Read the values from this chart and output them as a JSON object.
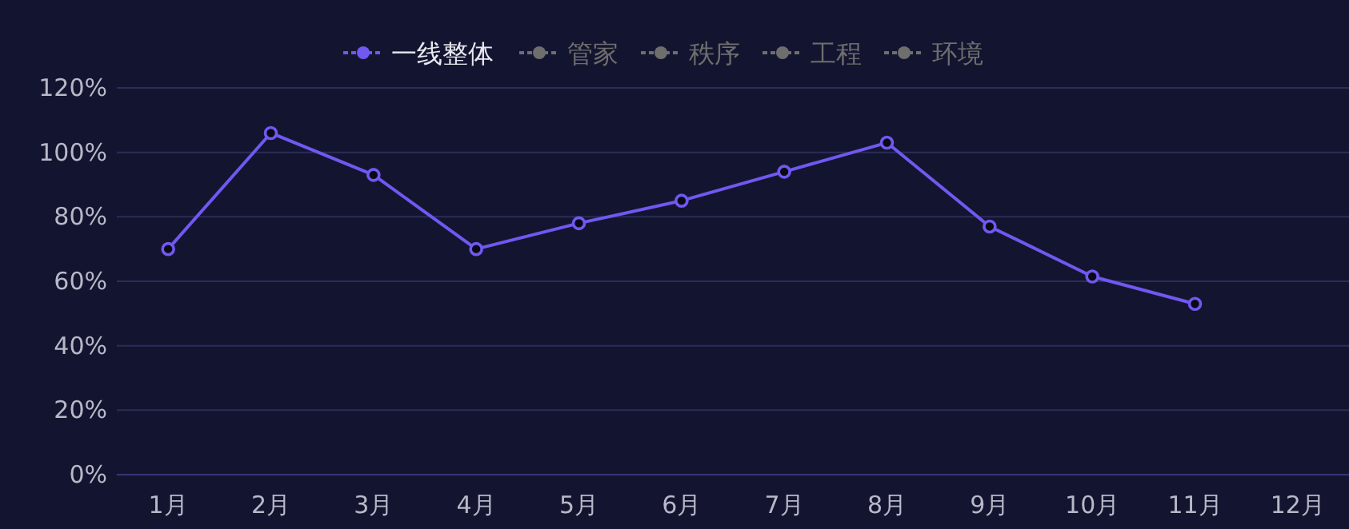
{
  "chart_data": {
    "type": "line",
    "categories": [
      "1月",
      "2月",
      "3月",
      "4月",
      "5月",
      "6月",
      "7月",
      "8月",
      "9月",
      "10月",
      "11月",
      "12月"
    ],
    "series": [
      {
        "name": "一线整体",
        "color": "#7058f0",
        "values": [
          70,
          106,
          93,
          70,
          78,
          85,
          94,
          103,
          77,
          61.5,
          53,
          null
        ]
      },
      {
        "name": "管家",
        "color": "#6e6e6e",
        "values": [
          null,
          null,
          null,
          null,
          null,
          null,
          null,
          null,
          null,
          null,
          null,
          null
        ]
      },
      {
        "name": "秩序",
        "color": "#6e6e6e",
        "values": [
          null,
          null,
          null,
          null,
          null,
          null,
          null,
          null,
          null,
          null,
          null,
          null
        ]
      },
      {
        "name": "工程",
        "color": "#6e6e6e",
        "values": [
          null,
          null,
          null,
          null,
          null,
          null,
          null,
          null,
          null,
          null,
          null,
          null
        ]
      },
      {
        "name": "环境",
        "color": "#6e6e6e",
        "values": [
          null,
          null,
          null,
          null,
          null,
          null,
          null,
          null,
          null,
          null,
          null,
          null
        ]
      }
    ],
    "ylim": [
      0,
      120
    ],
    "yticks": [
      {
        "value": 0,
        "label": "0%"
      },
      {
        "value": 20,
        "label": "20%"
      },
      {
        "value": 40,
        "label": "40%"
      },
      {
        "value": 60,
        "label": "60%"
      },
      {
        "value": 80,
        "label": "80%"
      },
      {
        "value": 100,
        "label": "100%"
      },
      {
        "value": 120,
        "label": "120%"
      }
    ],
    "grid": "y",
    "legend": "top",
    "marker": "circle",
    "line_style": "solid"
  }
}
